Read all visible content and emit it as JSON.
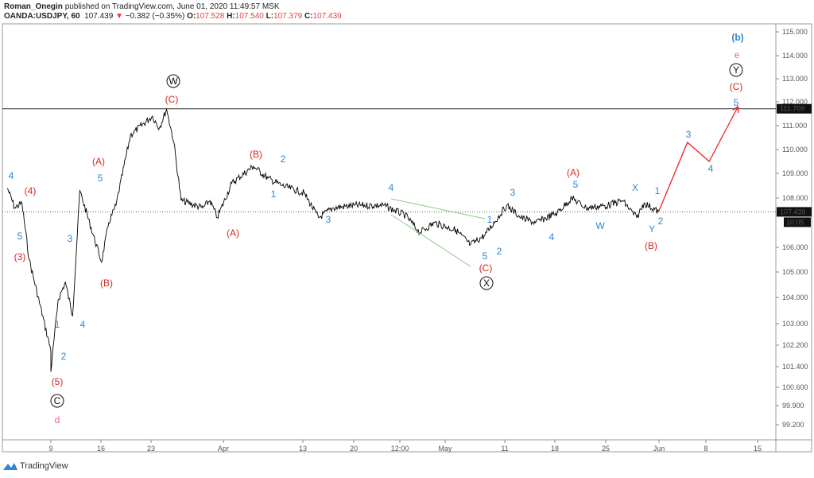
{
  "header": {
    "author": "Roman_Onegin",
    "published": "published on TradingView.com, June 01, 2020 11:49:57 MSK",
    "symbol": "OANDA:USDJPY, 60",
    "last": "107.439",
    "change": "−0.382 (−0.35%)",
    "o_label": "O:",
    "o": "107.528",
    "h_label": "H:",
    "h": "107.540",
    "l_label": "L:",
    "l": "107.379",
    "c_label": "C:",
    "c": "107.439"
  },
  "colors": {
    "blue": "#2e86d0",
    "red": "#d8261f",
    "pink": "#ec5b9a",
    "black": "#111111",
    "green": "#8bc98b",
    "projection": "#f02020",
    "down": "#e84040"
  },
  "y_axis": {
    "ticks": [
      "115.000",
      "114.000",
      "113.000",
      "112.000",
      "111.000",
      "110.000",
      "109.000",
      "108.000",
      "106.000",
      "105.000",
      "104.000",
      "103.000",
      "102.200",
      "101.400",
      "100.600",
      "99.900",
      "99.200"
    ],
    "level_line": "111.709",
    "last_price": "107.439",
    "countdown": "10:05"
  },
  "x_axis": {
    "ticks": [
      "9",
      "16",
      "23",
      "Apr",
      "13",
      "20",
      "12:00",
      "May",
      "11",
      "18",
      "25",
      "Jun",
      "8",
      "15"
    ]
  },
  "chart_data": {
    "type": "line",
    "symbol": "OANDA:USDJPY",
    "interval": "60",
    "price_path": [
      [
        "2020-03-03",
        108.4
      ],
      [
        "2020-03-04",
        107.6
      ],
      [
        "2020-03-05",
        107.8
      ],
      [
        "2020-03-06",
        105.5
      ],
      [
        "2020-03-09",
        102.0
      ],
      [
        "2020-03-09",
        101.2
      ],
      [
        "2020-03-10",
        103.9
      ],
      [
        "2020-03-11",
        104.6
      ],
      [
        "2020-03-12",
        103.3
      ],
      [
        "2020-03-13",
        108.3
      ],
      [
        "2020-03-16",
        105.4
      ],
      [
        "2020-03-17",
        107.0
      ],
      [
        "2020-03-18",
        107.7
      ],
      [
        "2020-03-20",
        110.6
      ],
      [
        "2020-03-23",
        111.4
      ],
      [
        "2020-03-24",
        110.9
      ],
      [
        "2020-03-25",
        111.7
      ],
      [
        "2020-03-26",
        110.3
      ],
      [
        "2020-03-27",
        107.9
      ],
      [
        "2020-03-30",
        107.6
      ],
      [
        "2020-03-31",
        107.9
      ],
      [
        "2020-04-01",
        107.2
      ],
      [
        "2020-04-03",
        108.6
      ],
      [
        "2020-04-06",
        109.3
      ],
      [
        "2020-04-08",
        108.8
      ],
      [
        "2020-04-10",
        108.5
      ],
      [
        "2020-04-13",
        108.2
      ],
      [
        "2020-04-15",
        107.2
      ],
      [
        "2020-04-17",
        107.6
      ],
      [
        "2020-04-20",
        107.7
      ],
      [
        "2020-04-24",
        107.7
      ],
      [
        "2020-04-27",
        107.3
      ],
      [
        "2020-04-29",
        106.6
      ],
      [
        "2020-05-01",
        107.0
      ],
      [
        "2020-05-04",
        106.7
      ],
      [
        "2020-05-06",
        106.1
      ],
      [
        "2020-05-08",
        106.5
      ],
      [
        "2020-05-11",
        107.7
      ],
      [
        "2020-05-13",
        107.2
      ],
      [
        "2020-05-15",
        107.0
      ],
      [
        "2020-05-18",
        107.4
      ],
      [
        "2020-05-20",
        108.0
      ],
      [
        "2020-05-22",
        107.6
      ],
      [
        "2020-05-25",
        107.7
      ],
      [
        "2020-05-27",
        107.9
      ],
      [
        "2020-05-29",
        107.2
      ],
      [
        "2020-05-30",
        107.8
      ],
      [
        "2020-06-01",
        107.44
      ]
    ],
    "projection": [
      [
        "2020-06-01",
        107.44
      ],
      [
        "2020-06-05",
        110.3
      ],
      [
        "2020-06-08",
        109.5
      ],
      [
        "2020-06-12",
        111.8
      ]
    ],
    "wave_labels": [
      {
        "text": "4",
        "color": "blue"
      },
      {
        "text": "(4)",
        "color": "red"
      },
      {
        "text": "5",
        "color": "blue"
      },
      {
        "text": "(3)",
        "color": "red"
      },
      {
        "text": "1",
        "color": "blue"
      },
      {
        "text": "2",
        "color": "blue"
      },
      {
        "text": "3",
        "color": "blue"
      },
      {
        "text": "4",
        "color": "blue"
      },
      {
        "text": "5",
        "color": "blue"
      },
      {
        "text": "(A)",
        "color": "red"
      },
      {
        "text": "(B)",
        "color": "red"
      },
      {
        "text": "(5)",
        "color": "red"
      },
      {
        "text": "C",
        "color": "black",
        "circled": true
      },
      {
        "text": "d",
        "color": "pink"
      },
      {
        "text": "W",
        "color": "black",
        "circled": true
      },
      {
        "text": "(C)",
        "color": "red"
      },
      {
        "text": "(A)",
        "color": "red"
      },
      {
        "text": "(B)",
        "color": "red"
      },
      {
        "text": "2",
        "color": "blue"
      },
      {
        "text": "1",
        "color": "blue"
      },
      {
        "text": "3",
        "color": "blue"
      },
      {
        "text": "4",
        "color": "blue"
      },
      {
        "text": "1",
        "color": "blue"
      },
      {
        "text": "5",
        "color": "blue"
      },
      {
        "text": "2",
        "color": "blue"
      },
      {
        "text": "(C)",
        "color": "red"
      },
      {
        "text": "X",
        "color": "black",
        "circled": true
      },
      {
        "text": "3",
        "color": "blue"
      },
      {
        "text": "4",
        "color": "blue"
      },
      {
        "text": "5",
        "color": "blue"
      },
      {
        "text": "(A)",
        "color": "red"
      },
      {
        "text": "W",
        "color": "blue"
      },
      {
        "text": "X",
        "color": "blue"
      },
      {
        "text": "1",
        "color": "blue"
      },
      {
        "text": "Y",
        "color": "blue"
      },
      {
        "text": "2",
        "color": "blue"
      },
      {
        "text": "(B)",
        "color": "red"
      },
      {
        "text": "3",
        "color": "blue"
      },
      {
        "text": "4",
        "color": "blue"
      },
      {
        "text": "5",
        "color": "blue"
      },
      {
        "text": "(C)",
        "color": "red"
      },
      {
        "text": "Y",
        "color": "black",
        "circled": true
      },
      {
        "text": "e",
        "color": "pink"
      },
      {
        "text": "(b)",
        "color": "blue",
        "bold": true
      }
    ]
  },
  "footer": {
    "brand": "TradingView"
  }
}
